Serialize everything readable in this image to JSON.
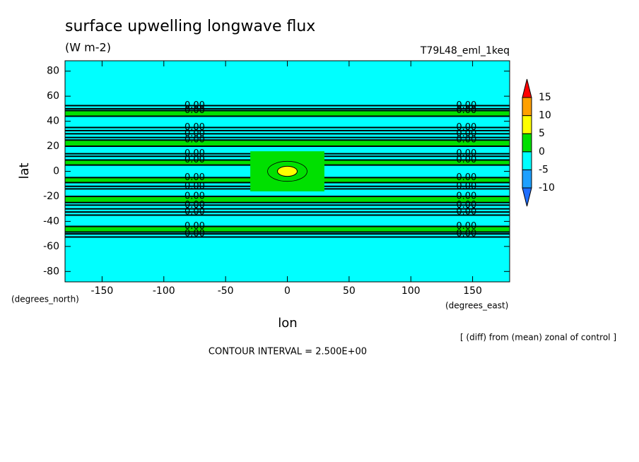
{
  "chart_data": {
    "type": "contour",
    "title": "surface upwelling longwave flux",
    "subtitle": "(W m-2)",
    "run_label": "T79L48_eml_1keq",
    "xlabel": "lon",
    "ylabel": "lat",
    "x_units": "(degrees_east)",
    "y_units": "(degrees_north)",
    "footnote": "[ (diff) from (mean) zonal of control ]",
    "contour_interval": "CONTOUR INTERVAL = 2.500E+00",
    "xlim": [
      -180,
      180
    ],
    "ylim": [
      -88.3,
      88.3
    ],
    "xticks": [
      -150,
      -100,
      -50,
      0,
      50,
      100,
      150
    ],
    "yticks": [
      -80,
      -60,
      -40,
      -20,
      0,
      20,
      40,
      60,
      80
    ],
    "colorbar": {
      "levels": [
        -10,
        -5,
        0,
        5,
        10,
        15
      ],
      "colors": [
        "#1e6eff",
        "#1ea0ff",
        "#00ffff",
        "#00e000",
        "#ffff00",
        "#ffa000",
        "#ff0000"
      ]
    },
    "filled_regions": [
      {
        "shape": "rect",
        "lon": [
          -180,
          180
        ],
        "lat": [
          -88.3,
          88.3
        ],
        "level": -5
      },
      {
        "shape": "rect",
        "lon": [
          -180,
          180
        ],
        "lat": [
          44,
          48.5
        ],
        "level": 0
      },
      {
        "shape": "rect",
        "lon": [
          -180,
          180
        ],
        "lat": [
          20,
          25
        ],
        "level": 0
      },
      {
        "shape": "rect",
        "lon": [
          -180,
          180
        ],
        "lat": [
          5,
          9
        ],
        "level": 0
      },
      {
        "shape": "rect",
        "lon": [
          -180,
          180
        ],
        "lat": [
          -9,
          -5
        ],
        "level": 0
      },
      {
        "shape": "rect",
        "lon": [
          -180,
          180
        ],
        "lat": [
          -25,
          -20
        ],
        "level": 0
      },
      {
        "shape": "rect",
        "lon": [
          -180,
          180
        ],
        "lat": [
          -48.5,
          -44
        ],
        "level": 0
      },
      {
        "shape": "rect",
        "lon": [
          -30,
          30
        ],
        "lat": [
          -16,
          16
        ],
        "level": 0
      },
      {
        "shape": "ellipse",
        "lon": [
          -8,
          8
        ],
        "lat": [
          -4,
          4
        ],
        "level": 5
      }
    ],
    "contour_label": "0.00",
    "contour_label_lons": [
      -75,
      145
    ],
    "zero_contour_lats": [
      52.5,
      50,
      48.5,
      44,
      35,
      32.5,
      30,
      27,
      25,
      20,
      14,
      12,
      9,
      5,
      -5,
      -9,
      -12,
      -14,
      -20,
      -25,
      -27,
      -30,
      -32.5,
      -35,
      -44,
      -48.5,
      -50,
      -52.5
    ],
    "inner_contours": [
      {
        "value": 2.5,
        "lon": [
          -16,
          16
        ],
        "lat": [
          -8,
          8
        ]
      },
      {
        "value": 5,
        "lon": [
          -8,
          8
        ],
        "lat": [
          -4,
          4
        ]
      }
    ]
  }
}
